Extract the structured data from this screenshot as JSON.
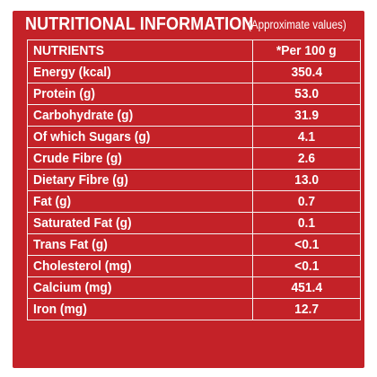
{
  "header": {
    "title": "NUTRITIONAL INFORMATION",
    "subtitle": "(Approximate values)"
  },
  "table": {
    "columns": [
      "NUTRIENTS",
      "*Per 100 g"
    ],
    "rows": [
      {
        "nutrient": "Energy (kcal)",
        "value": "350.4"
      },
      {
        "nutrient": "Protein (g)",
        "value": "53.0"
      },
      {
        "nutrient": "Carbohydrate (g)",
        "value": "31.9"
      },
      {
        "nutrient": "Of which Sugars (g)",
        "value": "4.1"
      },
      {
        "nutrient": "Crude Fibre (g)",
        "value": "2.6"
      },
      {
        "nutrient": "Dietary Fibre (g)",
        "value": "13.0"
      },
      {
        "nutrient": "Fat (g)",
        "value": "0.7"
      },
      {
        "nutrient": "Saturated Fat (g)",
        "value": "0.1"
      },
      {
        "nutrient": "Trans Fat (g)",
        "value": "<0.1"
      },
      {
        "nutrient": "Cholesterol (mg)",
        "value": "<0.1"
      },
      {
        "nutrient": "Calcium (mg)",
        "value": "451.4"
      },
      {
        "nutrient": "Iron (mg)",
        "value": "12.7"
      }
    ]
  },
  "colors": {
    "panel_background": "#c42228",
    "text": "#ffffff",
    "grid_lines": "#f3f3f3"
  }
}
